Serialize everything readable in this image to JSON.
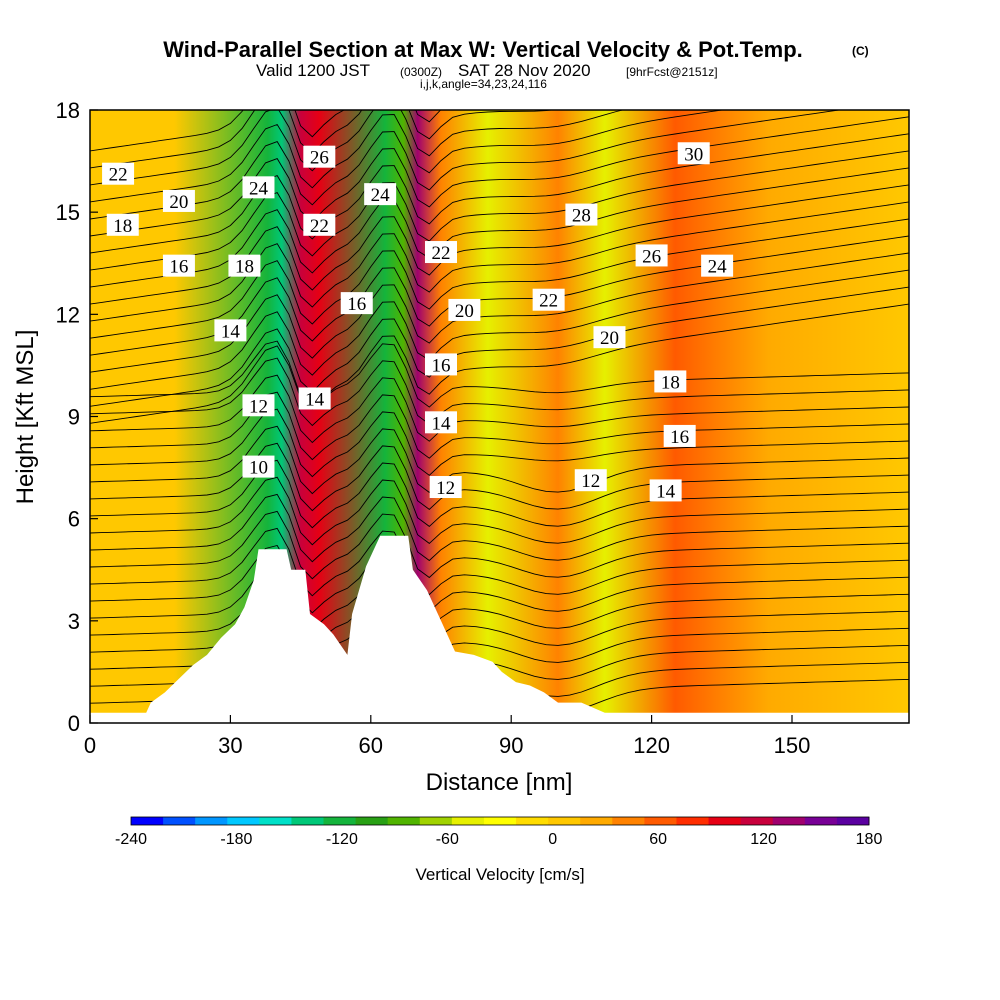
{
  "title": {
    "main": "Wind-Parallel Section at Max W: Vertical Velocity & Pot.Temp.",
    "copyright": "(C)",
    "valid_prefix": "Valid 1200 JST",
    "valid_utc": "(0300Z)",
    "valid_date": "SAT 28 Nov 2020",
    "forecast": "[9hrFcst@2151z]",
    "indices": "i,j,k,angle=34,23,24,116"
  },
  "chart_data": {
    "type": "heatmap",
    "xlabel": "Distance [nm]",
    "ylabel": "Height [Kft MSL]",
    "xlim": [
      0,
      175
    ],
    "ylim": [
      0,
      18
    ],
    "x_ticks": [
      0,
      30,
      60,
      90,
      120,
      150
    ],
    "y_ticks": [
      0,
      3,
      6,
      9,
      12,
      15,
      18
    ],
    "colorbar": {
      "label": "Vertical Velocity [cm/s]",
      "range": [
        -240,
        180
      ],
      "ticks": [
        -240,
        -180,
        -120,
        -60,
        0,
        60,
        120,
        180
      ],
      "colors": [
        "#0000ff",
        "#0050ff",
        "#0096ff",
        "#00c8ff",
        "#00e0c8",
        "#00c878",
        "#14b43c",
        "#28a014",
        "#50b400",
        "#a0d200",
        "#e6f000",
        "#ffff00",
        "#ffdc00",
        "#ffc800",
        "#ffaa00",
        "#ff8200",
        "#ff5a00",
        "#ff2d00",
        "#e60014",
        "#c8003c",
        "#a0006e",
        "#780096",
        "#5a00a0"
      ]
    },
    "velocity_bands": [
      {
        "x": 0,
        "w": 0
      },
      {
        "x": 18,
        "w": 5
      },
      {
        "x": 38,
        "w": -115
      },
      {
        "x": 41,
        "w": -140
      },
      {
        "x": 45,
        "w": 110
      },
      {
        "x": 49,
        "w": 100
      },
      {
        "x": 63,
        "w": -130
      },
      {
        "x": 67,
        "w": -90
      },
      {
        "x": 70,
        "w": 130
      },
      {
        "x": 75,
        "w": 40
      },
      {
        "x": 85,
        "w": -50
      },
      {
        "x": 100,
        "w": 40
      },
      {
        "x": 110,
        "w": -45
      },
      {
        "x": 125,
        "w": 55
      },
      {
        "x": 145,
        "w": 20
      },
      {
        "x": 175,
        "w": 10
      }
    ],
    "terrain_profile": [
      [
        0,
        0.3
      ],
      [
        12,
        0.3
      ],
      [
        13,
        0.6
      ],
      [
        16,
        0.9
      ],
      [
        19,
        1.3
      ],
      [
        22,
        1.7
      ],
      [
        25,
        2.0
      ],
      [
        28,
        2.5
      ],
      [
        31,
        2.9
      ],
      [
        33,
        3.4
      ],
      [
        35,
        4.2
      ],
      [
        36,
        5.1
      ],
      [
        42,
        5.1
      ],
      [
        43,
        4.5
      ],
      [
        46,
        4.5
      ],
      [
        47,
        3.2
      ],
      [
        50,
        2.9
      ],
      [
        52,
        2.6
      ],
      [
        55,
        2.0
      ],
      [
        56,
        3.2
      ],
      [
        59,
        4.6
      ],
      [
        62,
        5.5
      ],
      [
        68,
        5.5
      ],
      [
        69,
        4.5
      ],
      [
        72,
        3.9
      ],
      [
        75,
        3.0
      ],
      [
        78,
        2.1
      ],
      [
        82,
        2.0
      ],
      [
        86,
        1.8
      ],
      [
        88,
        1.5
      ],
      [
        91,
        1.2
      ],
      [
        94,
        1.1
      ],
      [
        97,
        0.9
      ],
      [
        100,
        0.6
      ],
      [
        105,
        0.6
      ],
      [
        110,
        0.3
      ],
      [
        175,
        0.3
      ]
    ],
    "theta_labels": [
      {
        "text": "22",
        "x": 6,
        "y": 16.1
      },
      {
        "text": "20",
        "x": 19,
        "y": 15.3
      },
      {
        "text": "18",
        "x": 7,
        "y": 14.6
      },
      {
        "text": "16",
        "x": 19,
        "y": 13.4
      },
      {
        "text": "14",
        "x": 30,
        "y": 11.5
      },
      {
        "text": "12",
        "x": 36,
        "y": 9.3
      },
      {
        "text": "10",
        "x": 36,
        "y": 7.5
      },
      {
        "text": "24",
        "x": 36,
        "y": 15.7
      },
      {
        "text": "18",
        "x": 33,
        "y": 13.4
      },
      {
        "text": "26",
        "x": 49,
        "y": 16.6
      },
      {
        "text": "22",
        "x": 49,
        "y": 14.6
      },
      {
        "text": "14",
        "x": 48,
        "y": 9.5
      },
      {
        "text": "24",
        "x": 62,
        "y": 15.5
      },
      {
        "text": "16",
        "x": 57,
        "y": 12.3
      },
      {
        "text": "22",
        "x": 75,
        "y": 13.8
      },
      {
        "text": "20",
        "x": 80,
        "y": 12.1
      },
      {
        "text": "16",
        "x": 75,
        "y": 10.5
      },
      {
        "text": "14",
        "x": 75,
        "y": 8.8
      },
      {
        "text": "12",
        "x": 76,
        "y": 6.9
      },
      {
        "text": "28",
        "x": 105,
        "y": 14.9
      },
      {
        "text": "22",
        "x": 98,
        "y": 12.4
      },
      {
        "text": "20",
        "x": 111,
        "y": 11.3
      },
      {
        "text": "30",
        "x": 129,
        "y": 16.7
      },
      {
        "text": "26",
        "x": 120,
        "y": 13.7
      },
      {
        "text": "24",
        "x": 134,
        "y": 13.4
      },
      {
        "text": "18",
        "x": 124,
        "y": 10.0
      },
      {
        "text": "16",
        "x": 126,
        "y": 8.4
      },
      {
        "text": "12",
        "x": 107,
        "y": 7.1
      },
      {
        "text": "14",
        "x": 123,
        "y": 6.8
      }
    ]
  }
}
